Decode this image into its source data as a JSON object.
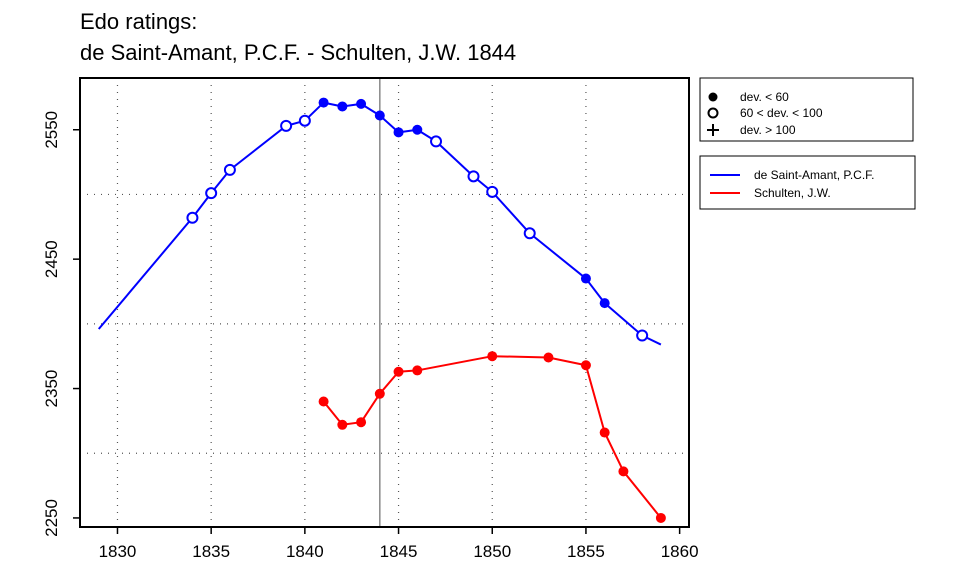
{
  "chart_data": {
    "type": "line",
    "title": "Edo ratings:",
    "subtitle": "de Saint-Amant, P.C.F. - Schulten, J.W. 1844",
    "xlabel": "",
    "ylabel": "",
    "xlim": [
      1828,
      1860.5
    ],
    "ylim": [
      2243,
      2590
    ],
    "x_ticks": [
      1830,
      1835,
      1840,
      1845,
      1850,
      1855,
      1860
    ],
    "y_ticks": [
      2250,
      2350,
      2450,
      2550
    ],
    "x_grid": [
      1830,
      1835,
      1840,
      1845,
      1850,
      1855
    ],
    "y_grid": [
      2300,
      2400,
      2500
    ],
    "vline": 1844,
    "grid": true,
    "series": [
      {
        "name": "de Saint-Amant, P.C.F.",
        "color": "#0000ff",
        "x": [
          1829,
          1834,
          1835,
          1836,
          1839,
          1840,
          1841,
          1842,
          1843,
          1844,
          1845,
          1846,
          1847,
          1849,
          1850,
          1852,
          1855,
          1856,
          1858,
          1859
        ],
        "y": [
          2396,
          2482,
          2501,
          2519,
          2553,
          2557,
          2571,
          2568,
          2570,
          2561,
          2548,
          2550,
          2541,
          2514,
          2502,
          2470,
          2435,
          2416,
          2391,
          2384
        ],
        "marker": [
          "none",
          "open",
          "open",
          "open",
          "open",
          "open",
          "filled",
          "filled",
          "filled",
          "filled",
          "filled",
          "filled",
          "open",
          "open",
          "open",
          "open",
          "filled",
          "filled",
          "open",
          "none"
        ]
      },
      {
        "name": "Schulten, J.W.",
        "color": "#ff0000",
        "x": [
          1841,
          1842,
          1843,
          1844,
          1845,
          1846,
          1850,
          1853,
          1855,
          1856,
          1857,
          1859
        ],
        "y": [
          2340,
          2322,
          2324,
          2346,
          2363,
          2364,
          2375,
          2374,
          2368,
          2316,
          2286,
          2250
        ],
        "marker": [
          "filled",
          "filled",
          "filled",
          "filled",
          "filled",
          "filled",
          "filled",
          "filled",
          "filled",
          "filled",
          "filled",
          "filled"
        ]
      }
    ],
    "marker_legend": [
      {
        "symbol": "filled",
        "label": "dev. < 60"
      },
      {
        "symbol": "open",
        "label": "60 < dev. < 100"
      },
      {
        "symbol": "plus",
        "label": "dev. > 100"
      }
    ],
    "legend_position": "right"
  }
}
